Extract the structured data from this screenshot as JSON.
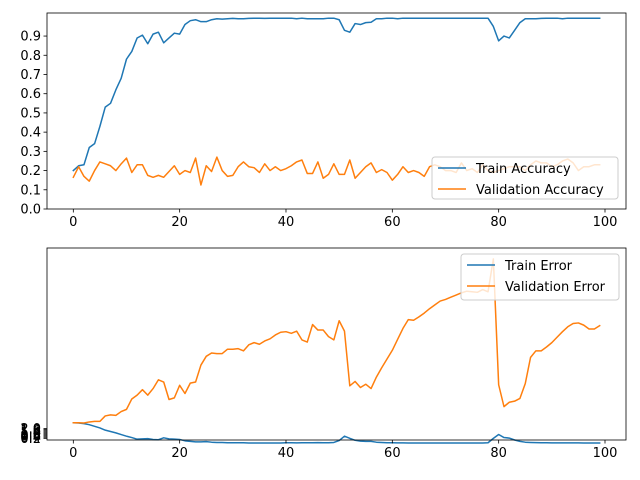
{
  "chart_data": [
    {
      "type": "line",
      "title": "",
      "xlabel": "",
      "ylabel": "",
      "xlim": [
        -4.95,
        103.95
      ],
      "ylim": [
        0.0,
        1.02
      ],
      "xticks": [
        0,
        20,
        40,
        60,
        80,
        100
      ],
      "yticks": [
        0.0,
        0.1,
        0.2,
        0.3,
        0.4,
        0.5,
        0.6,
        0.7,
        0.8,
        0.9
      ],
      "grid": false,
      "legend_position": "lower-right",
      "x": [
        0,
        1,
        2,
        3,
        4,
        5,
        6,
        7,
        8,
        9,
        10,
        11,
        12,
        13,
        14,
        15,
        16,
        17,
        18,
        19,
        20,
        21,
        22,
        23,
        24,
        25,
        26,
        27,
        28,
        29,
        30,
        31,
        32,
        33,
        34,
        35,
        36,
        37,
        38,
        39,
        40,
        41,
        42,
        43,
        44,
        45,
        46,
        47,
        48,
        49,
        50,
        51,
        52,
        53,
        54,
        55,
        56,
        57,
        58,
        59,
        60,
        61,
        62,
        63,
        64,
        65,
        66,
        67,
        68,
        69,
        70,
        71,
        72,
        73,
        74,
        75,
        76,
        77,
        78,
        79,
        80,
        81,
        82,
        83,
        84,
        85,
        86,
        87,
        88,
        89,
        90,
        91,
        92,
        93,
        94,
        95,
        96,
        97,
        98,
        99
      ],
      "series": [
        {
          "name": "Train Accuracy",
          "color": "#1f77b4",
          "values": [
            0.2,
            0.225,
            0.23,
            0.32,
            0.34,
            0.43,
            0.53,
            0.55,
            0.62,
            0.68,
            0.78,
            0.82,
            0.89,
            0.905,
            0.86,
            0.91,
            0.92,
            0.865,
            0.89,
            0.915,
            0.91,
            0.96,
            0.98,
            0.985,
            0.975,
            0.975,
            0.985,
            0.99,
            0.988,
            0.99,
            0.992,
            0.99,
            0.99,
            0.992,
            0.993,
            0.993,
            0.992,
            0.993,
            0.993,
            0.993,
            0.993,
            0.993,
            0.99,
            0.993,
            0.99,
            0.99,
            0.99,
            0.99,
            0.993,
            0.993,
            0.985,
            0.93,
            0.92,
            0.965,
            0.96,
            0.97,
            0.972,
            0.99,
            0.99,
            0.993,
            0.993,
            0.99,
            0.993,
            0.993,
            0.993,
            0.993,
            0.993,
            0.993,
            0.993,
            0.993,
            0.993,
            0.993,
            0.993,
            0.993,
            0.993,
            0.993,
            0.993,
            0.993,
            0.993,
            0.95,
            0.875,
            0.9,
            0.89,
            0.93,
            0.97,
            0.99,
            0.99,
            0.99,
            0.992,
            0.993,
            0.993,
            0.993,
            0.99,
            0.993,
            0.993,
            0.993,
            0.993,
            0.993,
            0.993,
            0.993
          ]
        },
        {
          "name": "Validation Accuracy",
          "color": "#ff7f0e",
          "values": [
            0.165,
            0.22,
            0.17,
            0.145,
            0.2,
            0.245,
            0.235,
            0.225,
            0.2,
            0.235,
            0.265,
            0.19,
            0.23,
            0.23,
            0.175,
            0.165,
            0.175,
            0.165,
            0.195,
            0.225,
            0.18,
            0.2,
            0.19,
            0.265,
            0.125,
            0.225,
            0.195,
            0.27,
            0.2,
            0.17,
            0.175,
            0.22,
            0.245,
            0.22,
            0.215,
            0.19,
            0.235,
            0.2,
            0.22,
            0.2,
            0.21,
            0.225,
            0.245,
            0.255,
            0.185,
            0.185,
            0.245,
            0.16,
            0.18,
            0.235,
            0.18,
            0.18,
            0.255,
            0.16,
            0.19,
            0.22,
            0.24,
            0.19,
            0.205,
            0.19,
            0.15,
            0.18,
            0.22,
            0.19,
            0.2,
            0.19,
            0.17,
            0.22,
            0.23,
            0.22,
            0.2,
            0.2,
            0.19,
            0.24,
            0.2,
            0.21,
            0.19,
            0.23,
            0.2,
            0.19,
            0.2,
            0.21,
            0.22,
            0.22,
            0.22,
            0.2,
            0.23,
            0.25,
            0.24,
            0.24,
            0.22,
            0.23,
            0.25,
            0.26,
            0.24,
            0.2,
            0.22,
            0.22,
            0.23,
            0.23
          ]
        }
      ]
    },
    {
      "type": "line",
      "title": "",
      "xlabel": "",
      "ylabel": "",
      "xlim": [
        -4.95,
        103.95
      ],
      "ylim": [
        -0.1,
        35.0
      ],
      "xticks": [
        0,
        20,
        40,
        60,
        80,
        100
      ],
      "yticks": [
        0.2,
        0.4,
        0.6,
        0.8,
        1.0,
        1.2,
        1.4,
        1.6,
        1.8,
        2.0
      ],
      "yticklabels": [
        "0.2",
        "0.4",
        "0.6",
        "0.8",
        "1.0",
        "1.2",
        "1.4",
        "1.6",
        "1.8",
        "2.0"
      ],
      "grid": false,
      "legend_position": "upper-right",
      "x": [
        0,
        1,
        2,
        3,
        4,
        5,
        6,
        7,
        8,
        9,
        10,
        11,
        12,
        13,
        14,
        15,
        16,
        17,
        18,
        19,
        20,
        21,
        22,
        23,
        24,
        25,
        26,
        27,
        28,
        29,
        30,
        31,
        32,
        33,
        34,
        35,
        36,
        37,
        38,
        39,
        40,
        41,
        42,
        43,
        44,
        45,
        46,
        47,
        48,
        49,
        50,
        51,
        52,
        53,
        54,
        55,
        56,
        57,
        58,
        59,
        60,
        61,
        62,
        63,
        64,
        65,
        66,
        67,
        68,
        69,
        70,
        71,
        72,
        73,
        74,
        75,
        76,
        77,
        78,
        79,
        80,
        81,
        82,
        83,
        84,
        85,
        86,
        87,
        88,
        89,
        90,
        91,
        92,
        93,
        94,
        95,
        96,
        97,
        98,
        99
      ],
      "series": [
        {
          "name": "Train Error",
          "color": "#1f77b4",
          "values": [
            3.05,
            3.0,
            2.9,
            2.7,
            2.4,
            2.1,
            1.7,
            1.45,
            1.2,
            0.9,
            0.6,
            0.35,
            0.05,
            0.1,
            0.15,
            0.0,
            -0.05,
            0.3,
            0.1,
            0.05,
            0.0,
            -0.25,
            -0.35,
            -0.45,
            -0.45,
            -0.4,
            -0.5,
            -0.55,
            -0.55,
            -0.6,
            -0.6,
            -0.6,
            -0.6,
            -0.65,
            -0.65,
            -0.65,
            -0.65,
            -0.65,
            -0.65,
            -0.65,
            -0.6,
            -0.6,
            -0.62,
            -0.6,
            -0.6,
            -0.6,
            -0.58,
            -0.6,
            -0.6,
            -0.55,
            -0.2,
            0.6,
            0.2,
            -0.15,
            -0.3,
            -0.35,
            -0.35,
            -0.5,
            -0.55,
            -0.6,
            -0.6,
            -0.62,
            -0.63,
            -0.64,
            -0.64,
            -0.65,
            -0.65,
            -0.65,
            -0.65,
            -0.65,
            -0.65,
            -0.65,
            -0.65,
            -0.65,
            -0.65,
            -0.65,
            -0.65,
            -0.65,
            -0.6,
            0.2,
            0.9,
            0.35,
            0.25,
            -0.1,
            -0.35,
            -0.5,
            -0.55,
            -0.58,
            -0.6,
            -0.6,
            -0.62,
            -0.62,
            -0.62,
            -0.63,
            -0.63,
            -0.63,
            -0.64,
            -0.64,
            -0.64,
            -0.64
          ]
        },
        {
          "name": "Validation Error",
          "color": "#ff7f0e",
          "values": [
            3.05,
            3.05,
            3.0,
            3.2,
            3.3,
            3.3,
            4.3,
            4.5,
            4.4,
            5.1,
            5.5,
            7.4,
            8.1,
            9.1,
            8.1,
            9.3,
            10.9,
            10.5,
            7.3,
            7.6,
            9.9,
            8.4,
            10.3,
            10.5,
            13.6,
            15.2,
            15.8,
            15.7,
            15.7,
            16.5,
            16.5,
            16.6,
            16.2,
            17.3,
            17.7,
            17.4,
            18.0,
            18.4,
            19.1,
            19.6,
            19.7,
            19.4,
            19.8,
            18.2,
            17.8,
            21.0,
            20.0,
            20.0,
            18.8,
            18.2,
            21.7,
            19.8,
            9.8,
            10.6,
            9.5,
            10.1,
            9.3,
            11.4,
            13.1,
            14.7,
            16.3,
            18.3,
            20.3,
            21.9,
            21.8,
            22.4,
            23.1,
            23.9,
            24.6,
            25.3,
            25.6,
            26.0,
            26.4,
            26.8,
            27.1,
            27.0,
            26.9,
            27.4,
            27.0,
            33.0,
            10.0,
            6.0,
            6.8,
            7.0,
            7.5,
            10.2,
            15.0,
            16.2,
            16.2,
            16.9,
            17.7,
            18.7,
            19.7,
            20.6,
            21.2,
            21.3,
            20.9,
            20.2,
            20.2,
            20.8
          ]
        }
      ]
    }
  ]
}
